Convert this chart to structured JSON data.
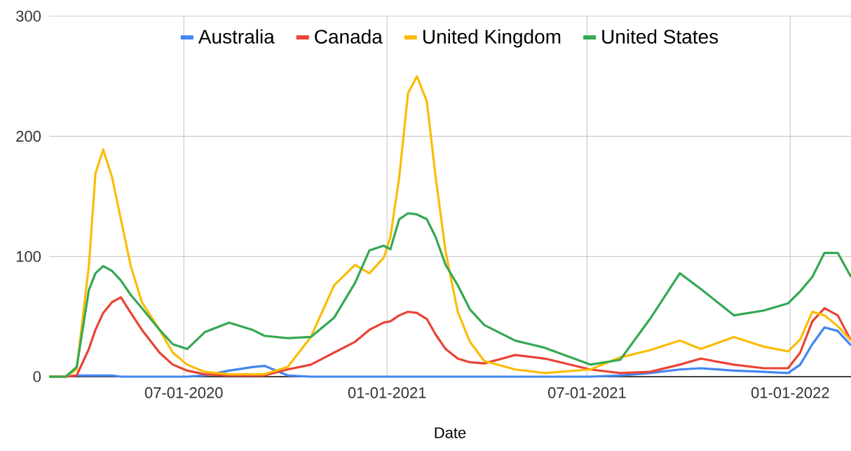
{
  "chart_data": {
    "type": "line",
    "xlabel": "Date",
    "x": [
      "2020-03-01",
      "2020-03-16",
      "2020-03-26",
      "2020-04-06",
      "2020-04-12",
      "2020-04-19",
      "2020-04-27",
      "2020-05-05",
      "2020-05-14",
      "2020-05-24",
      "2020-06-09",
      "2020-06-21",
      "2020-07-04",
      "2020-07-20",
      "2020-08-11",
      "2020-09-01",
      "2020-09-12",
      "2020-10-03",
      "2020-10-24",
      "2020-11-14",
      "2020-12-03",
      "2020-12-16",
      "2020-12-29",
      "2021-01-04",
      "2021-01-12",
      "2021-01-20",
      "2021-01-28",
      "2021-02-06",
      "2021-02-14",
      "2021-02-23",
      "2021-03-06",
      "2021-03-17",
      "2021-03-30",
      "2021-04-27",
      "2021-05-24",
      "2021-07-04",
      "2021-07-31",
      "2021-08-27",
      "2021-09-23",
      "2021-10-12",
      "2021-11-11",
      "2021-12-08",
      "2021-12-30",
      "2022-01-10",
      "2022-01-21",
      "2022-02-01",
      "2022-02-13",
      "2022-02-25"
    ],
    "series": [
      {
        "name": "Australia",
        "color": "#4285f4",
        "values": [
          0,
          0,
          1,
          1,
          1,
          1,
          1,
          0,
          0,
          0,
          0,
          0,
          0,
          1,
          5,
          8,
          9,
          1,
          0,
          0,
          0,
          0,
          0,
          0,
          0,
          0,
          0,
          0,
          0,
          0,
          0,
          0,
          0,
          0,
          0,
          0,
          1,
          3,
          6,
          7,
          5,
          4,
          3,
          10,
          27,
          41,
          38,
          26
        ]
      },
      {
        "name": "Canada",
        "color": "#ea4335",
        "values": [
          0,
          0,
          1,
          23,
          39,
          53,
          62,
          66,
          53,
          39,
          20,
          10,
          5,
          2,
          1,
          1,
          1,
          6,
          10,
          20,
          29,
          39,
          45,
          46,
          51,
          54,
          53,
          48,
          35,
          23,
          15,
          12,
          11,
          18,
          15,
          6,
          3,
          4,
          10,
          15,
          10,
          7,
          7,
          20,
          46,
          57,
          51,
          30
        ]
      },
      {
        "name": "United Kingdom",
        "color": "#fbbc04",
        "values": [
          0,
          0,
          6,
          92,
          169,
          189,
          166,
          131,
          92,
          62,
          39,
          20,
          10,
          4,
          2,
          2,
          2,
          8,
          33,
          76,
          93,
          86,
          99,
          116,
          166,
          236,
          250,
          229,
          166,
          104,
          54,
          29,
          13,
          6,
          3,
          6,
          16,
          22,
          30,
          23,
          33,
          25,
          21,
          31,
          54,
          51,
          42,
          30
        ]
      },
      {
        "name": "United States",
        "color": "#34a853",
        "values": [
          0,
          0,
          8,
          72,
          86,
          92,
          88,
          80,
          68,
          57,
          39,
          27,
          23,
          37,
          45,
          39,
          34,
          32,
          33,
          49,
          78,
          105,
          109,
          106,
          131,
          136,
          135,
          131,
          116,
          93,
          76,
          56,
          43,
          30,
          24,
          10,
          14,
          48,
          86,
          73,
          51,
          55,
          61,
          71,
          83,
          103,
          103,
          83
        ]
      }
    ],
    "xlim": [
      "2020-03-01",
      "2022-02-25"
    ],
    "xticks": [
      {
        "value": "2020-07-01",
        "label": "07-01-2020"
      },
      {
        "value": "2021-01-01",
        "label": "01-01-2021"
      },
      {
        "value": "2021-07-01",
        "label": "07-01-2021"
      },
      {
        "value": "2022-01-01",
        "label": "01-01-2022"
      }
    ],
    "ylim": [
      0,
      300
    ],
    "yticks": [
      0,
      100,
      200,
      300
    ],
    "grid": true,
    "legend": "top"
  }
}
